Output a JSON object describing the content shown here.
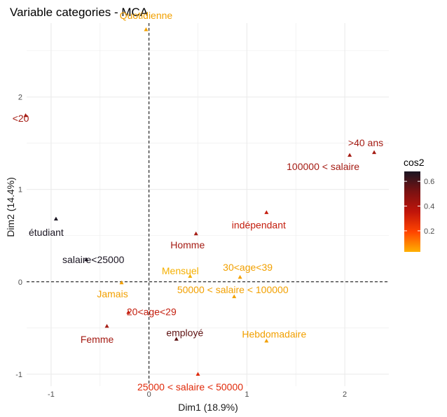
{
  "chart_data": {
    "type": "scatter",
    "title": "Variable categories - MCA",
    "xlabel": "Dim1 (18.9%)",
    "ylabel": "Dim2 (14.4%)",
    "xlim": [
      -1.25,
      2.45
    ],
    "ylim": [
      -1.13,
      2.8
    ],
    "xticks": [
      -1,
      0,
      1,
      2
    ],
    "yticks": [
      -1,
      0,
      1,
      2
    ],
    "grid": true,
    "reference_lines": {
      "x": 0,
      "y": 0,
      "style": "dashed"
    },
    "legend": {
      "title": "cos2",
      "position": "right",
      "ticks": [
        0.2,
        0.4,
        0.6
      ],
      "range": [
        0.03,
        0.68
      ],
      "colors": [
        "#FFB000",
        "#FF4400",
        "#C0140A",
        "#7A1212",
        "#1A1522"
      ]
    },
    "points": [
      {
        "label": "Quotidienne",
        "x": -0.03,
        "y": 2.73,
        "cos2": 0.06,
        "color": "#F2A000"
      },
      {
        "label": "<20",
        "x": -1.26,
        "y": 1.8,
        "cos2": 0.44,
        "color": "#A51C14"
      },
      {
        "label": ">40 ans",
        "x": 2.3,
        "y": 1.4,
        "cos2": 0.46,
        "color": "#A51C14"
      },
      {
        "label": "100000 < salaire",
        "x": 2.05,
        "y": 1.37,
        "cos2": 0.44,
        "color": "#A51C14"
      },
      {
        "label": "indépendant",
        "x": 1.2,
        "y": 0.75,
        "cos2": 0.38,
        "color": "#C41E0E"
      },
      {
        "label": "étudiant",
        "x": -0.95,
        "y": 0.68,
        "cos2": 0.66,
        "color": "#1A1522"
      },
      {
        "label": "Homme",
        "x": 0.48,
        "y": 0.52,
        "cos2": 0.42,
        "color": "#A51C14"
      },
      {
        "label": "salaire<25000",
        "x": -0.64,
        "y": 0.24,
        "cos2": 0.64,
        "color": "#1A1522"
      },
      {
        "label": "Mensuel",
        "x": 0.42,
        "y": 0.06,
        "cos2": 0.08,
        "color": "#F5B000"
      },
      {
        "label": "30<age<39",
        "x": 0.93,
        "y": 0.05,
        "cos2": 0.12,
        "color": "#F2A000"
      },
      {
        "label": "Jamais",
        "x": -0.28,
        "y": -0.01,
        "cos2": 0.12,
        "color": "#F2A000"
      },
      {
        "label": "50000 < salaire < 100000",
        "x": 0.87,
        "y": -0.16,
        "cos2": 0.13,
        "color": "#F2A000"
      },
      {
        "label": "20<age<29",
        "x": -0.21,
        "y": -0.33,
        "cos2": 0.38,
        "color": "#C41E0E"
      },
      {
        "label": "Femme",
        "x": -0.43,
        "y": -0.48,
        "cos2": 0.42,
        "color": "#A51C14"
      },
      {
        "label": "employé",
        "x": 0.28,
        "y": -0.62,
        "cos2": 0.55,
        "color": "#5E1212"
      },
      {
        "label": "Hebdomadaire",
        "x": 1.2,
        "y": -0.64,
        "cos2": 0.13,
        "color": "#F2A000"
      },
      {
        "label": "25000 < salaire < 50000",
        "x": 0.5,
        "y": -1.0,
        "cos2": 0.3,
        "color": "#E02A0A"
      }
    ]
  }
}
